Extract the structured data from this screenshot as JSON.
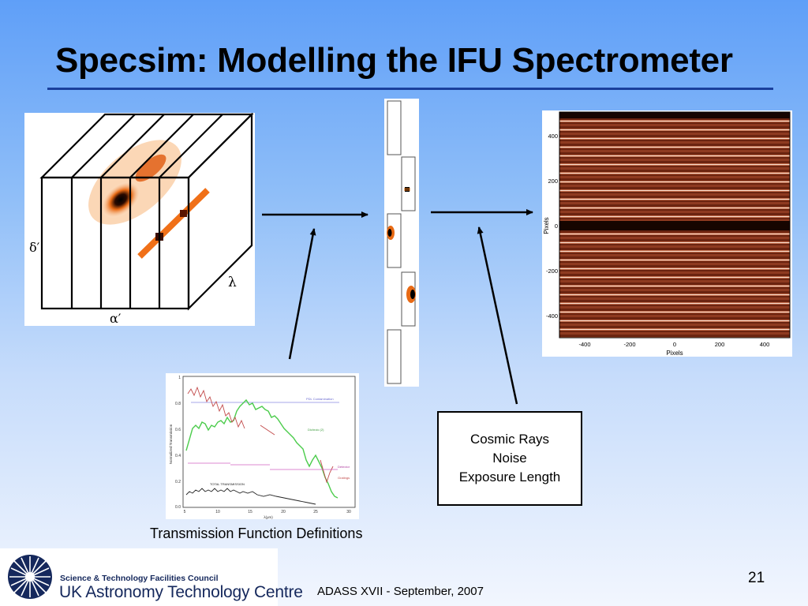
{
  "slide": {
    "title": "Specsim: Modelling the IFU Spectrometer",
    "page_number": "21",
    "footer_text": "ADASS XVII - September, 2007"
  },
  "cube": {
    "axis_delta": "δ′",
    "axis_alpha": "α′",
    "axis_lambda": "λ"
  },
  "detector": {
    "xlabel": "Pixels",
    "ylabel": "Pixels",
    "x_ticks": [
      "-400",
      "-200",
      "0",
      "200",
      "400"
    ],
    "y_ticks": [
      "400",
      "200",
      "0",
      "-200",
      "-400"
    ]
  },
  "transmission": {
    "caption": "Transmission Function Definitions",
    "ylabel": "Normalized Transmission",
    "xlabel": "λ(μm)",
    "y_ticks": [
      "1",
      "0.8",
      "0.6",
      "0.4",
      "0.2",
      "0.0"
    ],
    "x_ticks": [
      "5",
      "10",
      "15",
      "20",
      "25",
      "30"
    ],
    "curve_labels": {
      "pol": "PDL Contamination",
      "dichroic": "Dichroic (2)",
      "detector": "Detector",
      "gratings": "Gratings",
      "total": "TOTAL TRANSMISSION"
    }
  },
  "effects": {
    "lines": [
      "Cosmic Rays",
      "Noise",
      "Exposure Length"
    ]
  },
  "logo": {
    "council": "Science & Technology Facilities Council",
    "centre": "UK Astronomy Technology Centre"
  }
}
